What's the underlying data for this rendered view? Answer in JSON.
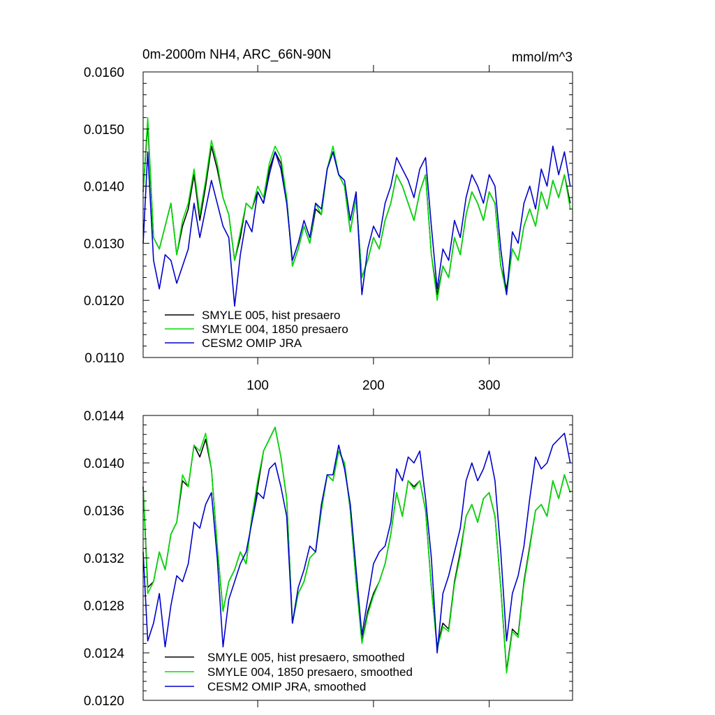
{
  "chart_data": [
    {
      "type": "line",
      "title": "0m-2000m NH4, ARC_66N-90N",
      "units": "mmol/m^3",
      "xlim": [
        1,
        372
      ],
      "ylim": [
        0.011,
        0.016
      ],
      "x_ticks": [
        100,
        200,
        300
      ],
      "x_tick_labels": [
        "100",
        "200",
        "300"
      ],
      "y_ticks": [
        0.011,
        0.012,
        0.013,
        0.014,
        0.015,
        0.016
      ],
      "y_tick_labels": [
        "0.0110",
        "0.0120",
        "0.0130",
        "0.0140",
        "0.0150",
        "0.0160"
      ],
      "legend_position": "bottom-left",
      "x": [
        1,
        5,
        10,
        15,
        20,
        25,
        30,
        35,
        40,
        45,
        50,
        55,
        60,
        65,
        70,
        75,
        80,
        85,
        90,
        95,
        100,
        105,
        110,
        115,
        120,
        125,
        130,
        135,
        140,
        145,
        150,
        155,
        160,
        165,
        170,
        175,
        180,
        185,
        190,
        195,
        200,
        205,
        210,
        215,
        220,
        225,
        230,
        235,
        240,
        245,
        250,
        255,
        260,
        265,
        270,
        275,
        280,
        285,
        290,
        295,
        300,
        305,
        310,
        315,
        320,
        325,
        330,
        335,
        340,
        345,
        350,
        355,
        360,
        365,
        370
      ],
      "series": [
        {
          "name": "SMYLE 005, hist presaero",
          "color": "#000000",
          "values": [
            0.0139,
            0.0151,
            0.0131,
            0.0129,
            0.0133,
            0.0137,
            0.0128,
            0.0133,
            0.0136,
            0.0142,
            0.0134,
            0.014,
            0.0147,
            0.0143,
            0.0138,
            0.0135,
            0.0127,
            0.0131,
            0.0137,
            0.0136,
            0.0139,
            0.0137,
            0.0143,
            0.0146,
            0.0144,
            0.0138,
            0.0126,
            0.0129,
            0.0133,
            0.013,
            0.0136,
            0.0135,
            0.0143,
            0.0146,
            0.0142,
            0.014,
            0.0132,
            0.0138,
            0.0124,
            0.0127,
            0.0131,
            0.0129,
            0.0134,
            0.0137,
            0.0142,
            0.014,
            0.0137,
            0.0134,
            0.0139,
            0.0142,
            0.0128,
            0.0121,
            0.0126,
            0.0124,
            0.0131,
            0.0128,
            0.0135,
            0.0139,
            0.0137,
            0.0134,
            0.0139,
            0.0137,
            0.0126,
            0.0122,
            0.0129,
            0.0127,
            0.0133,
            0.0136,
            0.0133,
            0.0139,
            0.0136,
            0.0141,
            0.0138,
            0.0142,
            0.0137
          ]
        },
        {
          "name": "SMYLE 004, 1850 presaero",
          "color": "#00dd00",
          "values": [
            0.0139,
            0.0152,
            0.0131,
            0.0129,
            0.0133,
            0.0137,
            0.0128,
            0.0134,
            0.0137,
            0.0143,
            0.0135,
            0.0141,
            0.0148,
            0.0144,
            0.0138,
            0.0135,
            0.0127,
            0.0132,
            0.0137,
            0.0136,
            0.014,
            0.0138,
            0.0144,
            0.0147,
            0.0145,
            0.0138,
            0.0126,
            0.0129,
            0.0133,
            0.013,
            0.0137,
            0.0135,
            0.0143,
            0.0147,
            0.0142,
            0.014,
            0.0132,
            0.0138,
            0.0124,
            0.0127,
            0.0131,
            0.0129,
            0.0134,
            0.0137,
            0.0142,
            0.014,
            0.0137,
            0.0134,
            0.0139,
            0.0142,
            0.0128,
            0.012,
            0.0126,
            0.0124,
            0.0131,
            0.0128,
            0.0135,
            0.0139,
            0.0137,
            0.0134,
            0.0139,
            0.0137,
            0.0126,
            0.0121,
            0.0129,
            0.0127,
            0.0133,
            0.0136,
            0.0133,
            0.0139,
            0.0136,
            0.0141,
            0.0138,
            0.0142,
            0.0136
          ]
        },
        {
          "name": "CESM2 OMIP JRA",
          "color": "#0000cc",
          "values": [
            0.013,
            0.0146,
            0.0127,
            0.0122,
            0.0128,
            0.0127,
            0.0123,
            0.0126,
            0.0129,
            0.0137,
            0.0131,
            0.0136,
            0.0141,
            0.0137,
            0.0133,
            0.0131,
            0.0119,
            0.0128,
            0.0134,
            0.0132,
            0.0139,
            0.0137,
            0.0142,
            0.0146,
            0.0143,
            0.0137,
            0.0127,
            0.013,
            0.0134,
            0.0131,
            0.0137,
            0.0136,
            0.0143,
            0.0146,
            0.0142,
            0.0141,
            0.0134,
            0.0139,
            0.0121,
            0.0129,
            0.0133,
            0.0131,
            0.0137,
            0.014,
            0.0145,
            0.0143,
            0.0141,
            0.0138,
            0.0143,
            0.0145,
            0.0133,
            0.0122,
            0.0129,
            0.0127,
            0.0134,
            0.0131,
            0.0138,
            0.0142,
            0.014,
            0.0137,
            0.0142,
            0.014,
            0.0129,
            0.0121,
            0.0132,
            0.013,
            0.0137,
            0.014,
            0.0136,
            0.0143,
            0.014,
            0.0147,
            0.0142,
            0.0146,
            0.014
          ]
        }
      ]
    },
    {
      "type": "line",
      "xlim": [
        1,
        372
      ],
      "ylim": [
        0.012,
        0.0144
      ],
      "x_ticks": [
        100,
        200,
        300
      ],
      "y_ticks": [
        0.012,
        0.0124,
        0.0128,
        0.0132,
        0.0136,
        0.014,
        0.0144
      ],
      "y_tick_labels": [
        "0.0120",
        "0.0124",
        "0.0128",
        "0.0132",
        "0.0136",
        "0.0140",
        "0.0144"
      ],
      "legend_position": "bottom-left",
      "x": [
        1,
        5,
        10,
        15,
        20,
        25,
        30,
        35,
        40,
        45,
        50,
        55,
        60,
        65,
        70,
        75,
        80,
        85,
        90,
        95,
        100,
        105,
        110,
        115,
        120,
        125,
        130,
        135,
        140,
        145,
        150,
        155,
        160,
        165,
        170,
        175,
        180,
        185,
        190,
        195,
        200,
        205,
        210,
        215,
        220,
        225,
        230,
        235,
        240,
        245,
        250,
        255,
        260,
        265,
        270,
        275,
        280,
        285,
        290,
        295,
        300,
        305,
        310,
        315,
        320,
        325,
        330,
        335,
        340,
        345,
        350,
        355,
        360,
        365,
        370
      ],
      "series": [
        {
          "name": "SMYLE 005, hist presaero, smoothed",
          "color": "#000000",
          "values": [
            0.0138,
            0.01295,
            0.013,
            0.01325,
            0.0131,
            0.0134,
            0.0135,
            0.01385,
            0.0138,
            0.01415,
            0.01405,
            0.0142,
            0.01395,
            0.0133,
            0.01275,
            0.013,
            0.0131,
            0.01325,
            0.01315,
            0.01355,
            0.0138,
            0.0141,
            0.0142,
            0.0143,
            0.01405,
            0.0137,
            0.01265,
            0.0129,
            0.013,
            0.0132,
            0.01325,
            0.0136,
            0.0139,
            0.01385,
            0.0141,
            0.014,
            0.0136,
            0.013,
            0.0125,
            0.01275,
            0.0129,
            0.013,
            0.01315,
            0.0134,
            0.01375,
            0.01355,
            0.01385,
            0.0138,
            0.01385,
            0.0136,
            0.01295,
            0.01245,
            0.01265,
            0.0126,
            0.013,
            0.01325,
            0.01355,
            0.01365,
            0.0135,
            0.0137,
            0.01375,
            0.01355,
            0.01295,
            0.01225,
            0.0126,
            0.01255,
            0.013,
            0.0133,
            0.0136,
            0.01365,
            0.01355,
            0.01385,
            0.0137,
            0.0139,
            0.01375
          ]
        },
        {
          "name": "SMYLE 004, 1850 presaero, smoothed",
          "color": "#00dd00",
          "values": [
            0.0138,
            0.0129,
            0.013,
            0.01325,
            0.0131,
            0.0134,
            0.0135,
            0.0139,
            0.0138,
            0.01415,
            0.0141,
            0.01425,
            0.01395,
            0.0133,
            0.01275,
            0.013,
            0.0131,
            0.01325,
            0.01315,
            0.01355,
            0.01385,
            0.0141,
            0.0142,
            0.0143,
            0.01405,
            0.0137,
            0.01265,
            0.0129,
            0.013,
            0.0132,
            0.01325,
            0.0136,
            0.0139,
            0.01385,
            0.0141,
            0.014,
            0.0136,
            0.013,
            0.01248,
            0.01272,
            0.01288,
            0.013,
            0.01315,
            0.0134,
            0.01375,
            0.01355,
            0.01385,
            0.01378,
            0.01385,
            0.0136,
            0.01295,
            0.01243,
            0.01262,
            0.01258,
            0.01298,
            0.01322,
            0.01355,
            0.01365,
            0.0135,
            0.0137,
            0.01375,
            0.01355,
            0.01295,
            0.01223,
            0.01258,
            0.01253,
            0.01298,
            0.01328,
            0.0136,
            0.01365,
            0.01355,
            0.01385,
            0.0137,
            0.0139,
            0.01375
          ]
        },
        {
          "name": "CESM2 OMIP JRA, smoothed",
          "color": "#0000cc",
          "values": [
            0.01325,
            0.0125,
            0.01265,
            0.0129,
            0.01245,
            0.0128,
            0.01305,
            0.013,
            0.01315,
            0.0135,
            0.01345,
            0.01365,
            0.01375,
            0.0132,
            0.01245,
            0.01285,
            0.013,
            0.01315,
            0.01325,
            0.0135,
            0.01375,
            0.0137,
            0.01395,
            0.014,
            0.0138,
            0.01355,
            0.01265,
            0.01295,
            0.0131,
            0.0133,
            0.01325,
            0.01365,
            0.0139,
            0.0139,
            0.01415,
            0.01395,
            0.01365,
            0.0131,
            0.01255,
            0.01285,
            0.01315,
            0.01325,
            0.0133,
            0.0135,
            0.01395,
            0.01385,
            0.01405,
            0.014,
            0.0141,
            0.0137,
            0.0132,
            0.0124,
            0.0129,
            0.01305,
            0.01325,
            0.01345,
            0.01385,
            0.014,
            0.01385,
            0.01395,
            0.0141,
            0.01385,
            0.01325,
            0.0125,
            0.0129,
            0.01305,
            0.0133,
            0.0137,
            0.01405,
            0.01395,
            0.014,
            0.01415,
            0.0142,
            0.01425,
            0.014
          ]
        }
      ]
    }
  ]
}
